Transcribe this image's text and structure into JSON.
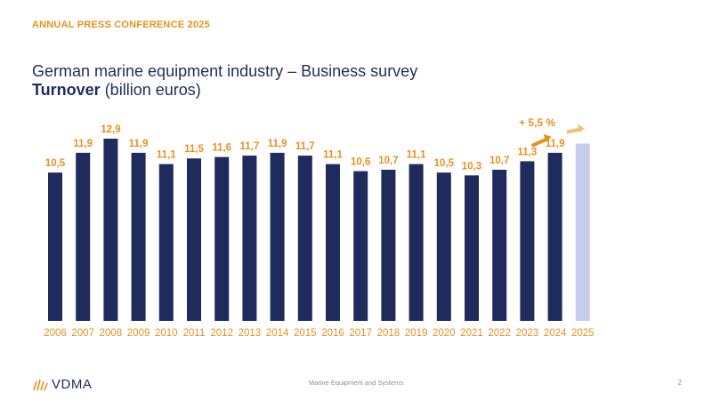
{
  "header": {
    "conference": "ANNUAL PRESS CONFERENCE 2025",
    "title_line1": "German marine equipment industry – Business survey",
    "title_bold": "Turnover",
    "title_rest": " (billion euros)"
  },
  "footer": {
    "logo_text": "VDMA",
    "center": "Marine Equipment and Systems",
    "page": "2"
  },
  "colors": {
    "bar": "#1f2b5c",
    "bar_forecast": "#c6cdea",
    "accent": "#E8901E",
    "arrow_light": "#f0c07a"
  },
  "chart_data": {
    "type": "bar",
    "categories": [
      "2006",
      "2007",
      "2008",
      "2009",
      "2010",
      "2011",
      "2012",
      "2013",
      "2014",
      "2015",
      "2016",
      "2017",
      "2018",
      "2019",
      "2020",
      "2021",
      "2022",
      "2023",
      "2024",
      "2025"
    ],
    "values": [
      10.5,
      11.9,
      12.9,
      11.9,
      11.1,
      11.5,
      11.6,
      11.7,
      11.9,
      11.7,
      11.1,
      10.6,
      10.7,
      11.1,
      10.5,
      10.3,
      10.7,
      11.3,
      11.9,
      null
    ],
    "data_labels": [
      "10,5",
      "11,9",
      "12,9",
      "11,9",
      "11,1",
      "11,5",
      "11,6",
      "11,7",
      "11,9",
      "11,7",
      "11,1",
      "10,6",
      "10,7",
      "11,1",
      "10,5",
      "10,3",
      "10,7",
      "11,3",
      "11,9",
      ""
    ],
    "annotation": "+ 5,5 %",
    "forecast_category": "2025",
    "forecast_percent": 5.5,
    "ylim": [
      0,
      12.9
    ],
    "xlabel": "",
    "ylabel": "",
    "grid": false
  }
}
